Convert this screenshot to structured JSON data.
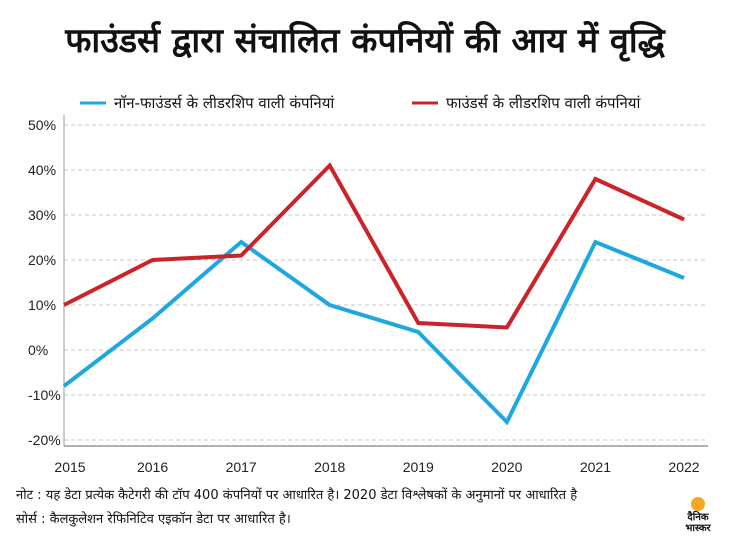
{
  "chart_data": {
    "type": "line",
    "title": "फाउंडर्स द्वारा संचालित कंपनियों की आय में वृद्धि",
    "x": [
      "2015",
      "2016",
      "2017",
      "2018",
      "2019",
      "2020",
      "2021",
      "2022"
    ],
    "series": [
      {
        "name": "नॉन-फाउंडर्स के लीडरशिप वाली कंपनियां",
        "color": "#1ea7e1",
        "values": [
          -8,
          7,
          24,
          10,
          4,
          -16,
          24,
          16
        ]
      },
      {
        "name": "फाउंडर्स के लीडरशिप वाली कंपनियां",
        "color": "#cc2229",
        "values": [
          10,
          20,
          21,
          41,
          6,
          5,
          38,
          29
        ]
      }
    ],
    "y_ticks": [
      "50%",
      "40%",
      "30%",
      "20%",
      "10%",
      "0%",
      "-10%",
      "-20%"
    ],
    "ylim": [
      -20,
      50
    ],
    "grid": "horizontal dashed",
    "legend": "top"
  },
  "footer": {
    "note": "नोट : यह डेटा प्रत्येक कैटेगरी की टॉप 400 कंपनियों पर आधारित है।  2020 डेटा विश्लेषकों के अनुमानों  पर आधारित है",
    "source": "सोर्स : कैलकुलेशन रेफिनिटिव एइकॉन डेटा पर आधारित है।"
  },
  "logo": {
    "line1": "दैनिक",
    "line2": "भास्कर"
  }
}
